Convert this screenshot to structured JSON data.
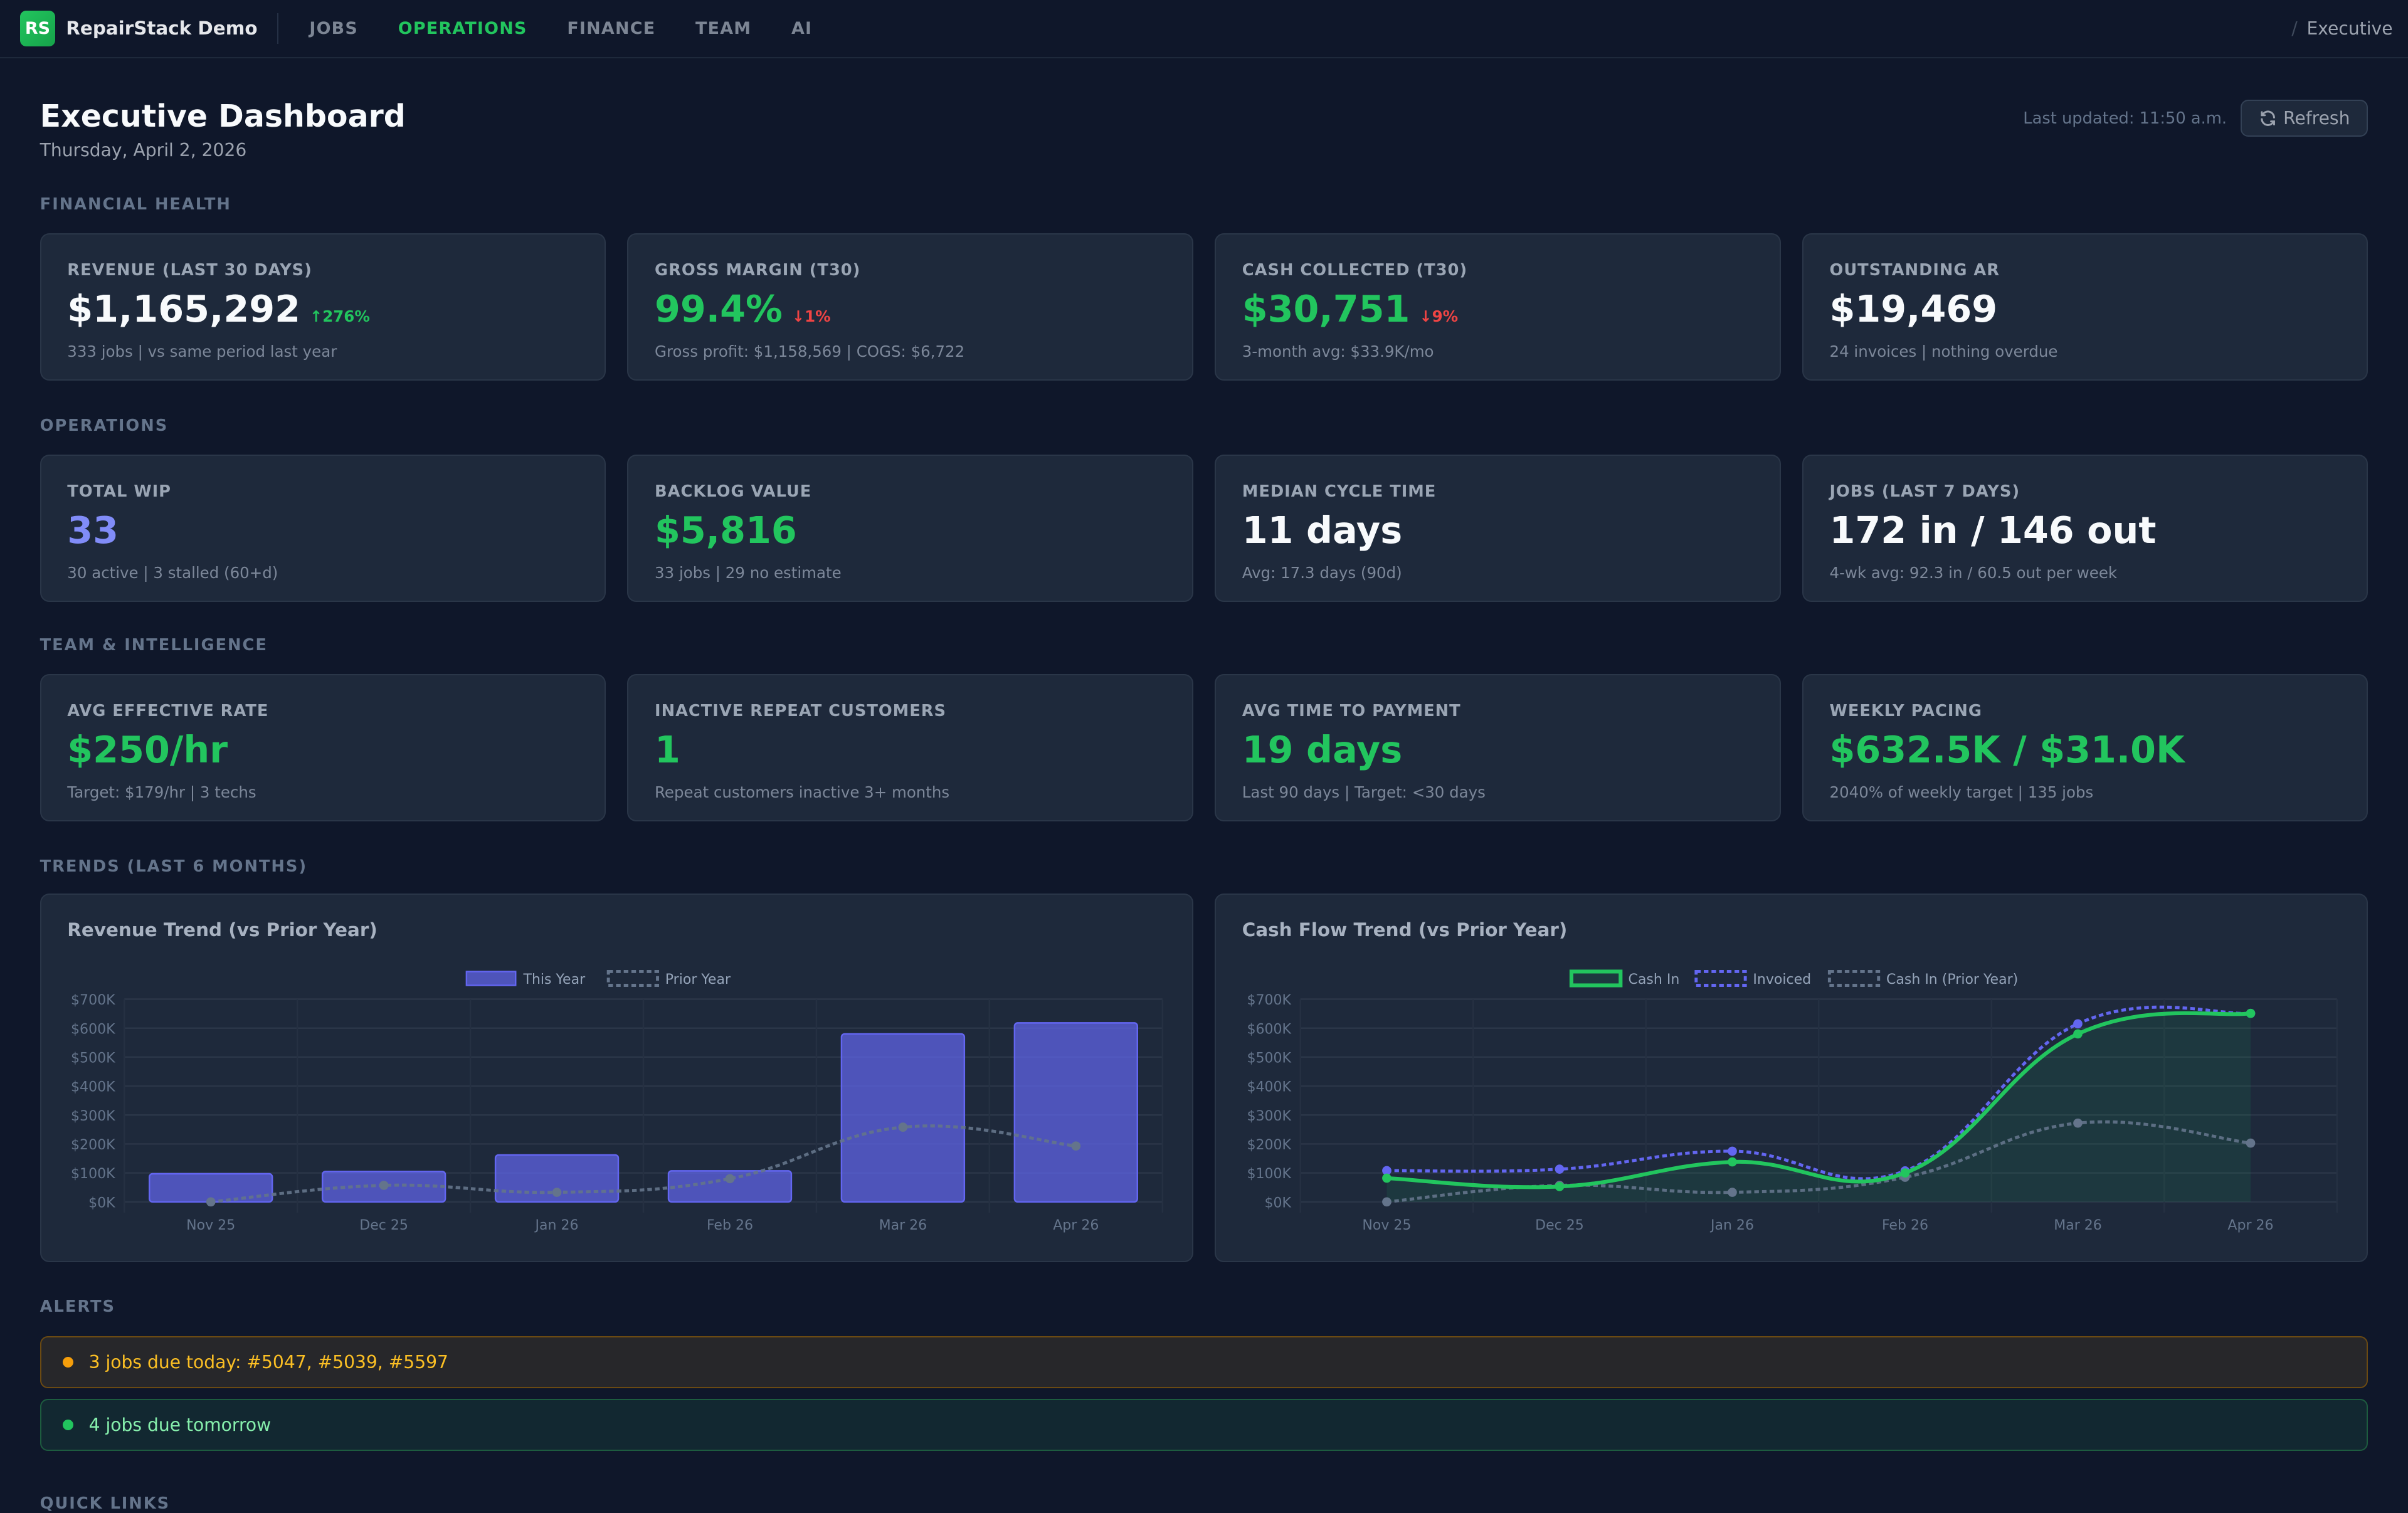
{
  "nav": {
    "logo": "RS",
    "brand": "RepairStack Demo",
    "items": [
      {
        "label": "JOBS",
        "active": false
      },
      {
        "label": "OPERATIONS",
        "active": true
      },
      {
        "label": "FINANCE",
        "active": false
      },
      {
        "label": "TEAM",
        "active": false
      },
      {
        "label": "AI",
        "active": false
      }
    ],
    "breadcrumb_sep": "/",
    "breadcrumb": "Executive"
  },
  "header": {
    "title": "Executive Dashboard",
    "date": "Thursday, April 2, 2026",
    "last_updated": "Last updated: 11:50 a.m.",
    "refresh_label": "Refresh"
  },
  "sections": {
    "financial": "FINANCIAL HEALTH",
    "operations": "OPERATIONS",
    "team": "TEAM & INTELLIGENCE",
    "trends": "TRENDS (LAST 6 MONTHS)",
    "alerts": "ALERTS",
    "quick_links": "QUICK LINKS"
  },
  "financial": [
    {
      "label": "REVENUE (LAST 30 DAYS)",
      "value": "$1,165,292",
      "change": "↑276%",
      "change_dir": "up",
      "sub": "333 jobs | vs same period last year",
      "tone": "white"
    },
    {
      "label": "GROSS MARGIN (T30)",
      "value": "99.4%",
      "change": "↓1%",
      "change_dir": "down",
      "sub": "Gross profit: $1,158,569 | COGS: $6,722",
      "tone": "green"
    },
    {
      "label": "CASH COLLECTED (T30)",
      "value": "$30,751",
      "change": "↓9%",
      "change_dir": "down",
      "sub": "3-month avg: $33.9K/mo",
      "tone": "green"
    },
    {
      "label": "OUTSTANDING AR",
      "value": "$19,469",
      "change": "",
      "sub": "24 invoices | nothing overdue",
      "tone": "white"
    }
  ],
  "operations": [
    {
      "label": "TOTAL WIP",
      "value": "33",
      "change": "",
      "sub": "30 active | 3 stalled (60+d)",
      "tone": "purple"
    },
    {
      "label": "BACKLOG VALUE",
      "value": "$5,816",
      "change": "",
      "sub": "33 jobs | 29 no estimate",
      "tone": "green"
    },
    {
      "label": "MEDIAN CYCLE TIME",
      "value": "11 days",
      "change": "",
      "sub": "Avg: 17.3 days (90d)",
      "tone": "white"
    },
    {
      "label": "JOBS (LAST 7 DAYS)",
      "value": "172 in / 146 out",
      "change": "",
      "sub": "4-wk avg: 92.3 in / 60.5 out per week",
      "tone": "white"
    }
  ],
  "team": [
    {
      "label": "AVG EFFECTIVE RATE",
      "value": "$250/hr",
      "change": "",
      "sub": "Target: $179/hr | 3 techs",
      "tone": "green"
    },
    {
      "label": "INACTIVE REPEAT CUSTOMERS",
      "value": "1",
      "change": "",
      "sub": "Repeat customers inactive 3+ months",
      "tone": "green"
    },
    {
      "label": "AVG TIME TO PAYMENT",
      "value": "19 days",
      "change": "",
      "sub": "Last 90 days | Target: <30 days",
      "tone": "green"
    },
    {
      "label": "WEEKLY PACING",
      "value": "$632.5K / $31.0K",
      "change": "",
      "sub": "2040% of weekly target | 135 jobs",
      "tone": "green"
    }
  ],
  "alerts": [
    {
      "text": "3 jobs due today: #5047, #5039, #5597",
      "level": "warning"
    },
    {
      "text": "4 jobs due tomorrow",
      "level": "info"
    }
  ],
  "colors": {
    "accent": "#22c55e",
    "indigo": "#6366f1",
    "prior": "#64748b",
    "warning": "#f59e0b",
    "danger": "#ef4444"
  },
  "chart_data": [
    {
      "type": "bar",
      "title": "Revenue Trend (vs Prior Year)",
      "categories": [
        "Nov 25",
        "Dec 25",
        "Jan 26",
        "Feb 26",
        "Mar 26",
        "Apr 26"
      ],
      "yticks": [
        "$0K",
        "$100K",
        "$200K",
        "$300K",
        "$400K",
        "$500K",
        "$600K",
        "$700K"
      ],
      "ylim": [
        0,
        700000
      ],
      "grid": true,
      "legend": "top-center",
      "series": [
        {
          "name": "This Year",
          "kind": "bar",
          "color": "#6366f1",
          "values": [
            97000,
            105000,
            162000,
            107000,
            580000,
            618000
          ]
        },
        {
          "name": "Prior Year",
          "kind": "line-dashed",
          "color": "#64748b",
          "values": [
            0,
            57000,
            33000,
            80000,
            258000,
            193000
          ]
        }
      ]
    },
    {
      "type": "line",
      "title": "Cash Flow Trend (vs Prior Year)",
      "categories": [
        "Nov 25",
        "Dec 25",
        "Jan 26",
        "Feb 26",
        "Mar 26",
        "Apr 26"
      ],
      "yticks": [
        "$0K",
        "$100K",
        "$200K",
        "$300K",
        "$400K",
        "$500K",
        "$600K",
        "$700K"
      ],
      "ylim": [
        0,
        700000
      ],
      "grid": true,
      "legend": "top-center",
      "series": [
        {
          "name": "Cash In",
          "kind": "area",
          "color": "#22c55e",
          "values": [
            82000,
            53000,
            138000,
            100000,
            580000,
            651000
          ]
        },
        {
          "name": "Invoiced",
          "kind": "line-dashed",
          "color": "#6366f1",
          "values": [
            108000,
            113000,
            175000,
            107000,
            615000,
            651000
          ]
        },
        {
          "name": "Cash In (Prior Year)",
          "kind": "line-dashed",
          "color": "#64748b",
          "values": [
            0,
            57000,
            33000,
            85000,
            272000,
            203000
          ]
        }
      ]
    }
  ]
}
